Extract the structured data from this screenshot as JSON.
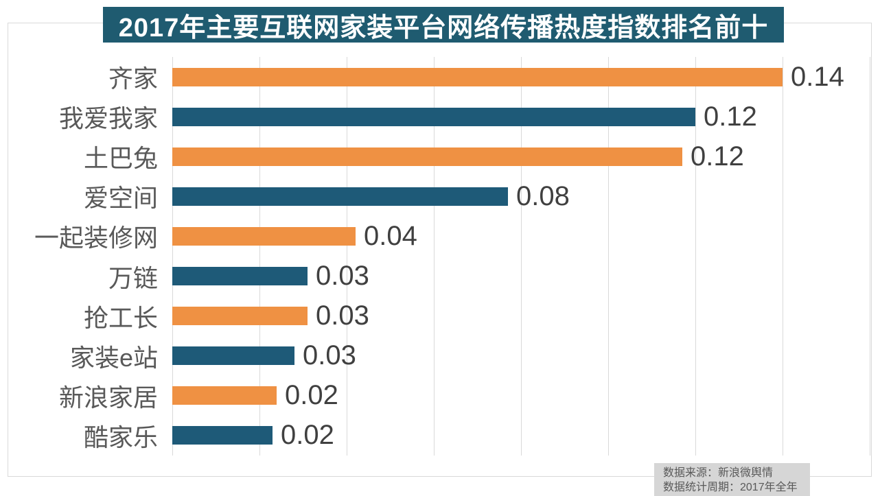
{
  "title": {
    "text": "2017年主要互联网家装平台网络传播热度指数排名前十"
  },
  "source": {
    "line1": "数据来源：新浪微舆情",
    "line2": "数据统计周期：2017年全年"
  },
  "colors": {
    "background": "#FFFFFF",
    "bar_orange": "#EF9143",
    "bar_blue": "#1E5A78",
    "title_bg": "#1F5B70",
    "title_text": "#FFFFFF",
    "gridline": "#D9D9D9",
    "frame_border": "#D9D9D9",
    "category_label": "#595959",
    "value_label": "#404040",
    "source_bg": "#D6D6D6",
    "source_text": "#595959"
  },
  "chart_data": {
    "type": "bar",
    "orientation": "horizontal",
    "title": "2017年主要互联网家装平台网络传播热度指数排名前十",
    "categories": [
      "齐家",
      "我爱我家",
      "土巴兔",
      "爱空间",
      "一起装修网",
      "万链",
      "抢工长",
      "家装e站",
      "新浪家居",
      "酷家乐"
    ],
    "values": [
      0.14,
      0.12,
      0.12,
      0.08,
      0.04,
      0.03,
      0.03,
      0.03,
      0.02,
      0.02
    ],
    "value_labels": [
      "0.14",
      "0.12",
      "0.12",
      "0.08",
      "0.04",
      "0.03",
      "0.03",
      "0.03",
      "0.02",
      "0.02"
    ],
    "estimated_bar_values": [
      0.14,
      0.12,
      0.117,
      0.077,
      0.042,
      0.031,
      0.031,
      0.028,
      0.024,
      0.023
    ],
    "bar_color_pattern": [
      "orange",
      "blue"
    ],
    "xlabel": "",
    "ylabel": "",
    "xlim": [
      0,
      0.16
    ],
    "grid_interval": 0.02,
    "gridlines": "vertical",
    "tick_labels_shown": false,
    "legend": "none"
  }
}
